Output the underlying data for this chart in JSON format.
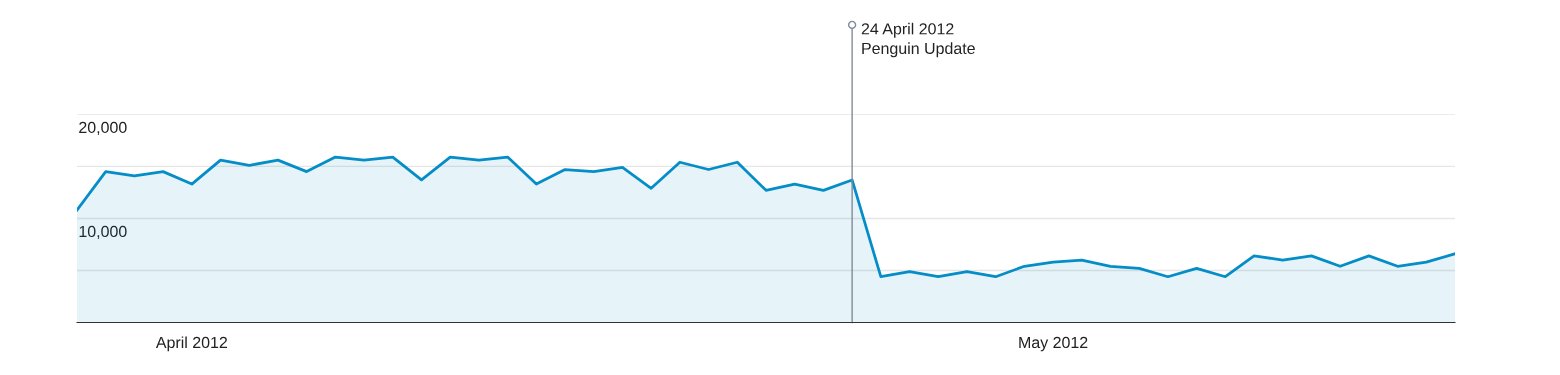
{
  "chart_data": {
    "type": "area",
    "x": [
      "2012-03-28",
      "2012-03-29",
      "2012-03-30",
      "2012-03-31",
      "2012-04-01",
      "2012-04-02",
      "2012-04-03",
      "2012-04-04",
      "2012-04-05",
      "2012-04-06",
      "2012-04-07",
      "2012-04-08",
      "2012-04-09",
      "2012-04-10",
      "2012-04-11",
      "2012-04-12",
      "2012-04-13",
      "2012-04-14",
      "2012-04-15",
      "2012-04-16",
      "2012-04-17",
      "2012-04-18",
      "2012-04-19",
      "2012-04-20",
      "2012-04-21",
      "2012-04-22",
      "2012-04-23",
      "2012-04-24",
      "2012-04-25",
      "2012-04-26",
      "2012-04-27",
      "2012-04-28",
      "2012-04-29",
      "2012-04-30",
      "2012-05-01",
      "2012-05-02",
      "2012-05-03",
      "2012-05-04",
      "2012-05-05",
      "2012-05-06",
      "2012-05-07",
      "2012-05-08",
      "2012-05-09",
      "2012-05-10",
      "2012-05-11",
      "2012-05-12",
      "2012-05-13",
      "2012-05-14",
      "2012-05-15"
    ],
    "series": [
      {
        "color": "#058dc7",
        "values": [
          10800,
          14500,
          14100,
          14500,
          13300,
          15600,
          15100,
          15600,
          14500,
          15900,
          15600,
          15900,
          13700,
          15900,
          15600,
          15900,
          13300,
          14700,
          14500,
          14900,
          12900,
          15400,
          14700,
          15400,
          12700,
          13300,
          12700,
          13700,
          4400,
          4900,
          4400,
          4900,
          4400,
          5400,
          5800,
          6000,
          5400,
          5200,
          4400,
          5200,
          4400,
          6400,
          6000,
          6400,
          5400,
          6400,
          5400,
          5800,
          6600
        ]
      }
    ],
    "xlim": [
      "2012-03-28",
      "2012-05-15"
    ],
    "xticks": [
      {
        "value": "2012-04-01",
        "label": "April 2012"
      },
      {
        "value": "2012-05-01",
        "label": "May 2012"
      }
    ],
    "ylim": [
      0,
      20000
    ],
    "yticks": [
      {
        "value": 5000,
        "label": null
      },
      {
        "value": 10000,
        "label": "10,000"
      },
      {
        "value": 15000,
        "label": null
      },
      {
        "value": 20000,
        "label": "20,000"
      }
    ],
    "grid": "y",
    "ref_lines": [
      {
        "axis": "x",
        "value": "2012-04-24",
        "label": "24 April 2012\nPenguin Update",
        "color": "#7f8c99"
      }
    ]
  }
}
